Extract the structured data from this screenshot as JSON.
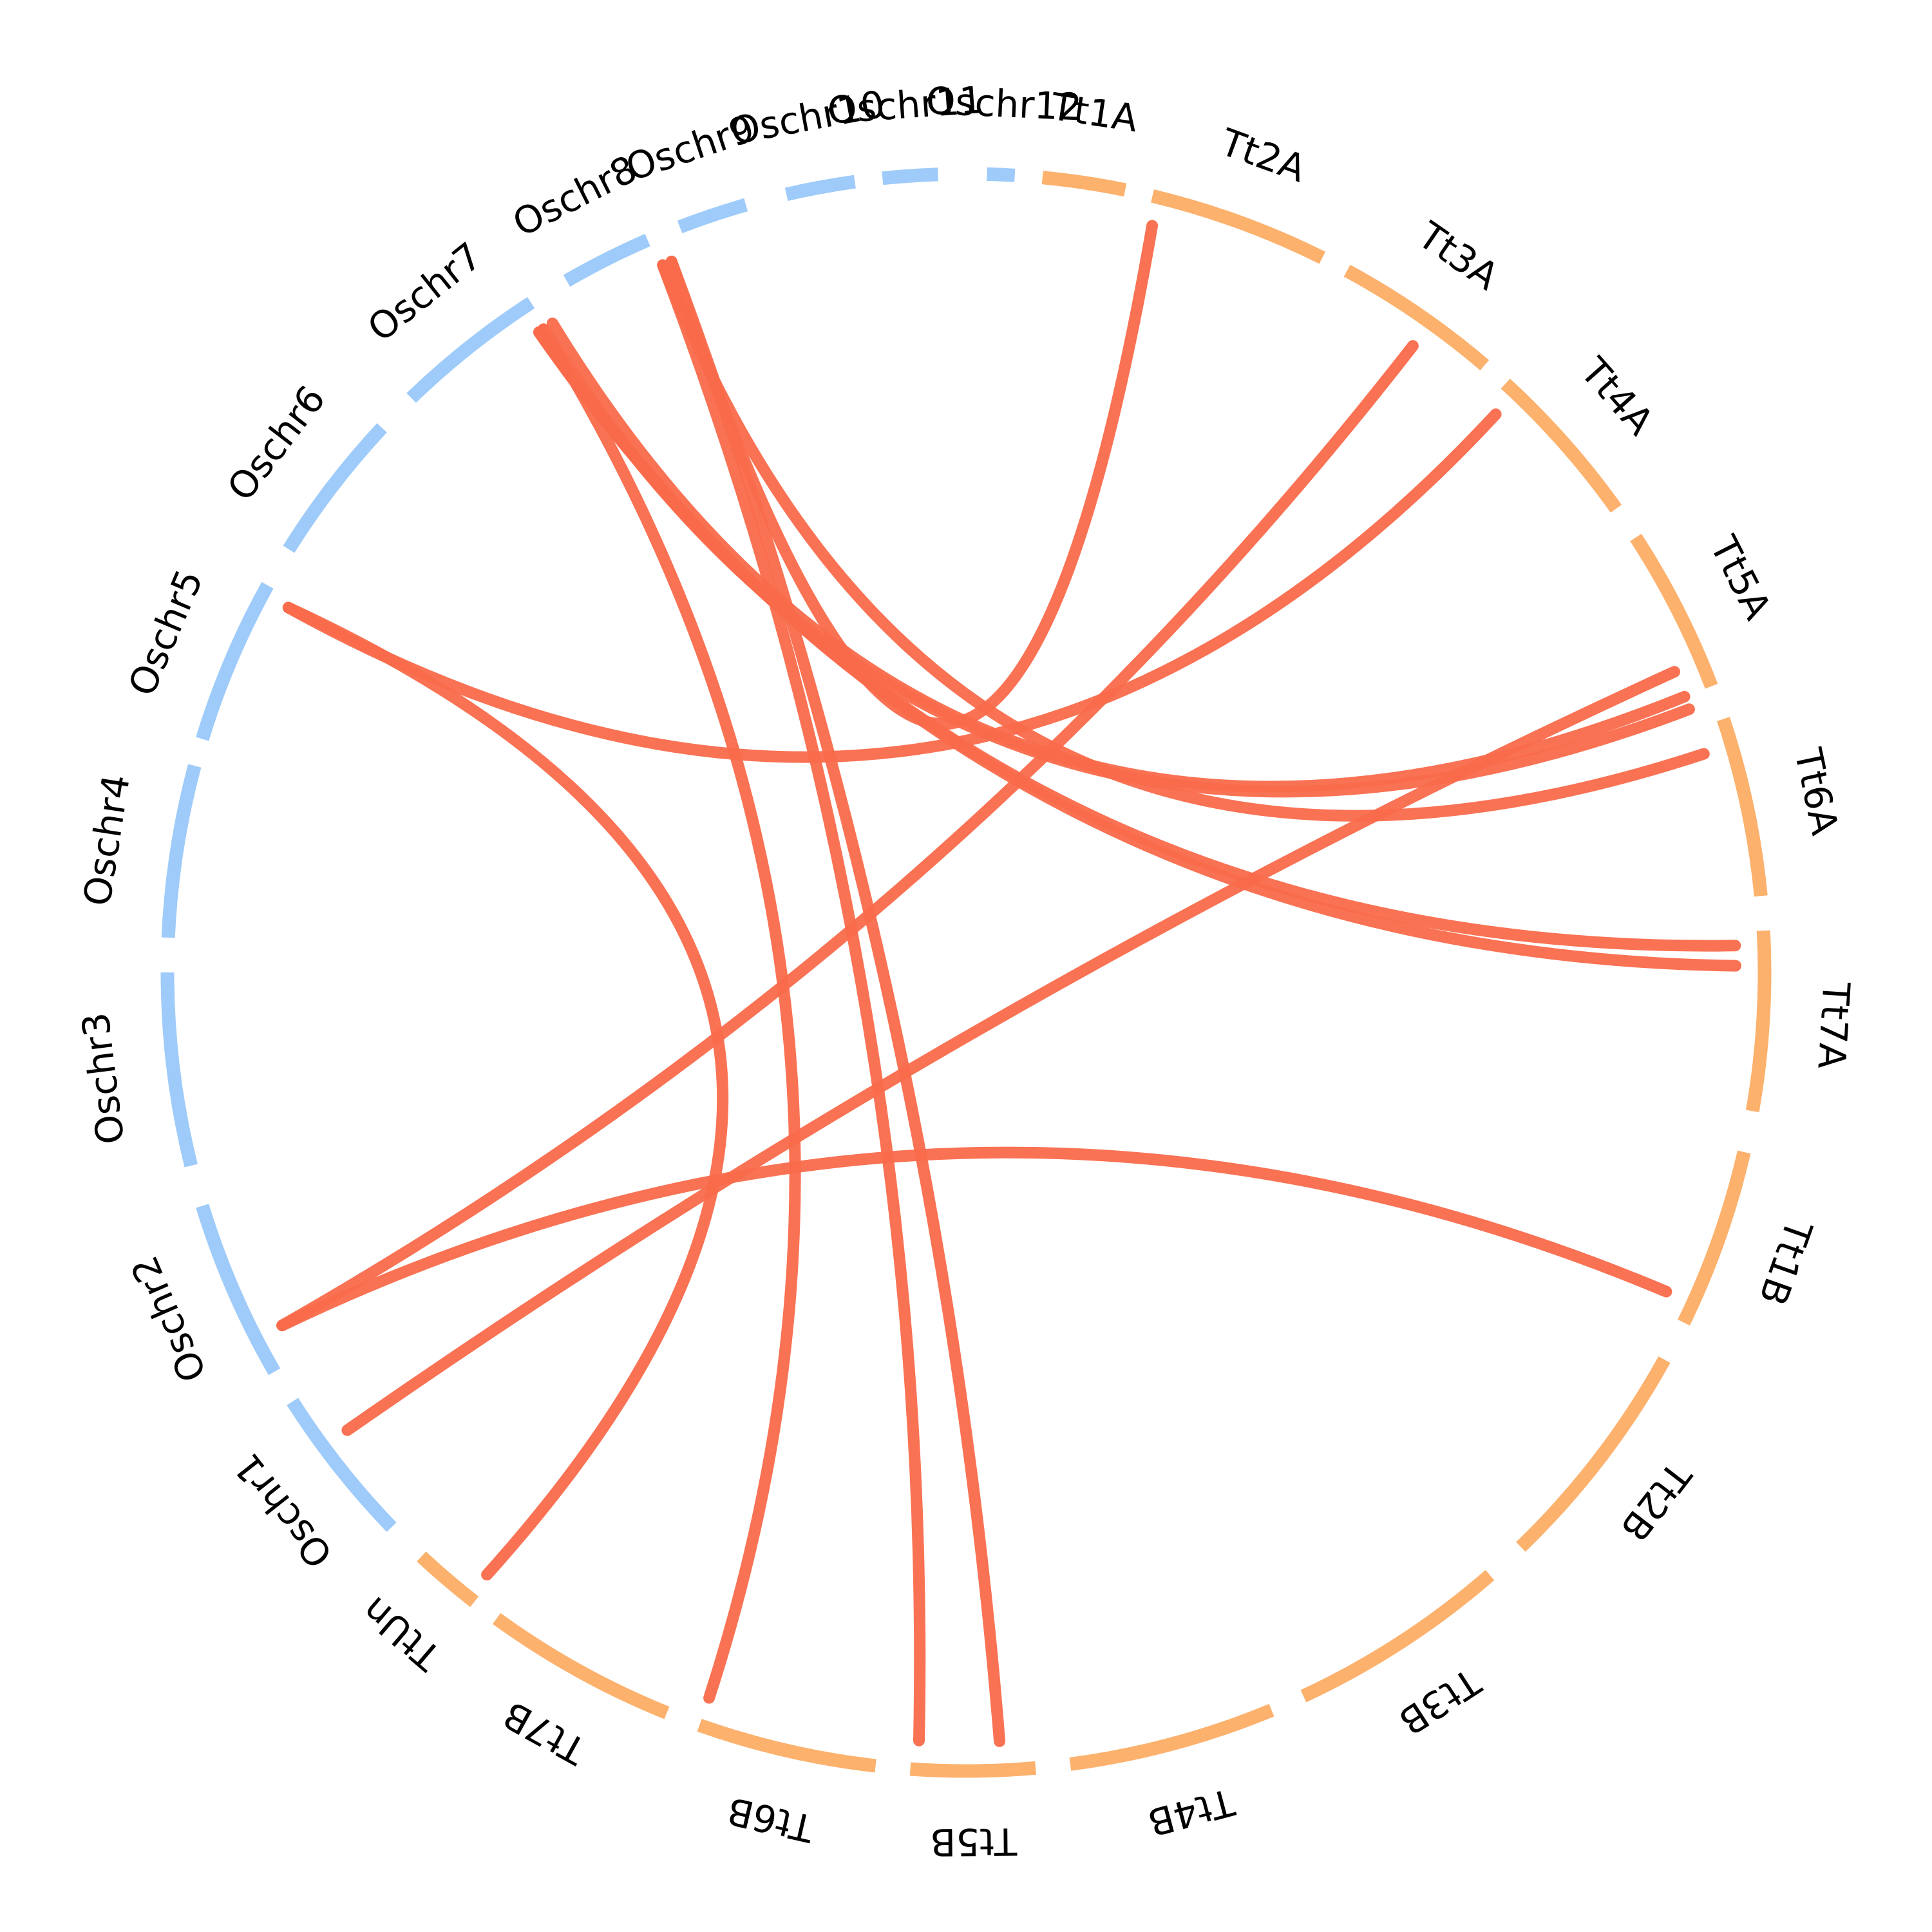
{
  "colors": {
    "oryza": "#9ecbfa",
    "triticum": "#fcb16d",
    "link": "#f96a4b"
  },
  "chromosomes": [
    {
      "name": "Tt1A",
      "group": "triticum"
    },
    {
      "name": "Tt2A",
      "group": "triticum"
    },
    {
      "name": "Tt3A",
      "group": "triticum"
    },
    {
      "name": "Tt4A",
      "group": "triticum"
    },
    {
      "name": "Tt5A",
      "group": "triticum"
    },
    {
      "name": "Tt6A",
      "group": "triticum"
    },
    {
      "name": "Tt7A",
      "group": "triticum"
    },
    {
      "name": "Tt1B",
      "group": "triticum"
    },
    {
      "name": "Tt2B",
      "group": "triticum"
    },
    {
      "name": "Tt3B",
      "group": "triticum"
    },
    {
      "name": "Tt4B",
      "group": "triticum"
    },
    {
      "name": "Tt5B",
      "group": "triticum"
    },
    {
      "name": "Tt6B",
      "group": "triticum"
    },
    {
      "name": "Tt7B",
      "group": "triticum"
    },
    {
      "name": "TtUn",
      "group": "triticum"
    },
    {
      "name": "Oschr1",
      "group": "oryza"
    },
    {
      "name": "Oschr2",
      "group": "oryza"
    },
    {
      "name": "Oschr3",
      "group": "oryza"
    },
    {
      "name": "Oschr4",
      "group": "oryza"
    },
    {
      "name": "Oschr5",
      "group": "oryza"
    },
    {
      "name": "Oschr6",
      "group": "oryza"
    },
    {
      "name": "Oschr7",
      "group": "oryza"
    },
    {
      "name": "Oschr8",
      "group": "oryza"
    },
    {
      "name": "Oschr9",
      "group": "oryza"
    },
    {
      "name": "Oschr10",
      "group": "oryza"
    },
    {
      "name": "Oschr11",
      "group": "oryza"
    },
    {
      "name": "Oschr12",
      "group": "oryza"
    }
  ],
  "links": [
    {
      "from": "Oschr9",
      "to": "Tt1A"
    },
    {
      "from": "Oschr9",
      "to": "Tt5B"
    },
    {
      "from": "Oschr9",
      "to": "Tt6B"
    },
    {
      "from": "Oschr9",
      "to": "Tt6A"
    },
    {
      "from": "Oschr8",
      "to": "Tt7A"
    },
    {
      "from": "Oschr8",
      "to": "Tt7A"
    },
    {
      "from": "Oschr8",
      "to": "Tt5A"
    },
    {
      "from": "Oschr8",
      "to": "Tt7B"
    },
    {
      "from": "Oschr8",
      "to": "Tt5A"
    },
    {
      "from": "Oschr6",
      "to": "Tt4A"
    },
    {
      "from": "Oschr6",
      "to": "TtUn"
    },
    {
      "from": "Oschr2",
      "to": "Tt3A"
    },
    {
      "from": "Oschr2",
      "to": "Tt1B"
    },
    {
      "from": "Oschr1",
      "to": "Tt5A"
    }
  ]
}
